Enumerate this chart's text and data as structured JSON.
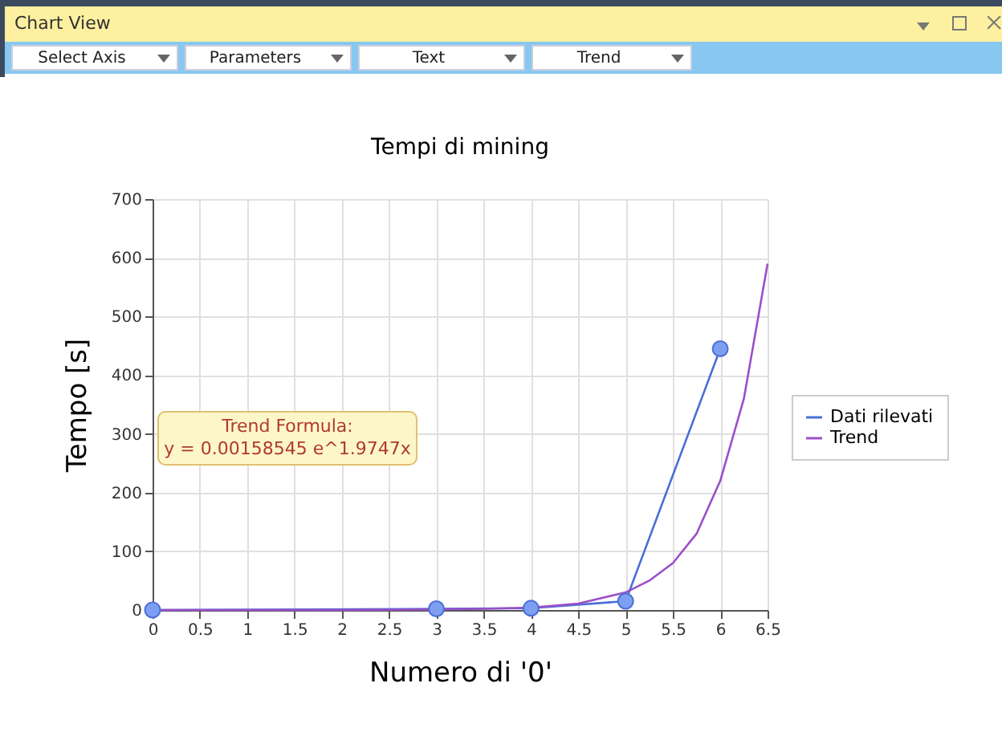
{
  "chart_data": {
    "type": "line",
    "title": "Tempi di mining",
    "xlabel": "Numero di '0'",
    "ylabel": "Tempo [s]",
    "xlim": [
      0,
      6.5
    ],
    "xticks": [
      0,
      0.5,
      1,
      1.5,
      2,
      2.5,
      3,
      3.5,
      4,
      4.5,
      5,
      5.5,
      6,
      6.5
    ],
    "ylim": [
      0,
      700
    ],
    "yticks": [
      0,
      100,
      200,
      300,
      400,
      500,
      600,
      700
    ],
    "grid": true,
    "legend": "right",
    "series": [
      {
        "name": "Dati rilevati",
        "color": "#4a6fd6",
        "marker": "circle",
        "x": [
          0,
          3,
          4,
          5,
          6
        ],
        "values": [
          0,
          2,
          3,
          15,
          445
        ]
      },
      {
        "name": "Trend",
        "color": "#9b4fc9",
        "marker": "none",
        "x": [
          0,
          1,
          2,
          3,
          3.5,
          4,
          4.5,
          5,
          5.25,
          5.5,
          5.75,
          6,
          6.25,
          6.5
        ],
        "values": [
          0,
          0,
          0,
          1,
          2,
          4,
          11,
          30,
          50,
          80,
          130,
          220,
          360,
          590
        ]
      }
    ],
    "annotations": [
      "Chart View",
      "Select Axis",
      "Parameters",
      "Text",
      "Trend",
      "Trend Formula:",
      "y = 0.00158545 e^1.9747x"
    ]
  }
}
